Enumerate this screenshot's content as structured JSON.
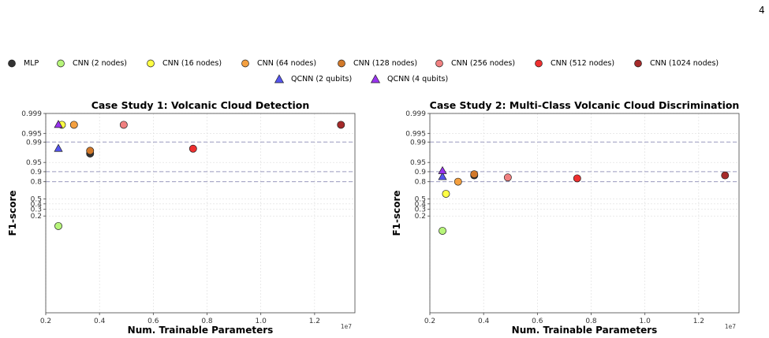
{
  "page_number": "4",
  "legend": [
    {
      "label": "MLP",
      "color": "#333333",
      "marker": "circle"
    },
    {
      "label": "CNN (2 nodes)",
      "color": "#b7f57a",
      "marker": "circle"
    },
    {
      "label": "CNN (16 nodes)",
      "color": "#ffff44",
      "marker": "circle"
    },
    {
      "label": "CNN (64 nodes)",
      "color": "#f4a040",
      "marker": "circle"
    },
    {
      "label": "CNN (128 nodes)",
      "color": "#d2792a",
      "marker": "circle"
    },
    {
      "label": "CNN (256 nodes)",
      "color": "#f08080",
      "marker": "circle"
    },
    {
      "label": "CNN (512 nodes)",
      "color": "#ee3030",
      "marker": "circle"
    },
    {
      "label": "CNN (1024 nodes)",
      "color": "#a52a2a",
      "marker": "circle"
    },
    {
      "label": "QCNN (2 qubits)",
      "color": "#5555ee",
      "marker": "triangle"
    },
    {
      "label": "QCNN (4 qubits)",
      "color": "#9933ee",
      "marker": "triangle"
    }
  ],
  "chart_data": [
    {
      "type": "scatter",
      "title": "Case Study 1: Volcanic Cloud Detection",
      "xlabel": "Num. Trainable Parameters",
      "ylabel": "F1-score",
      "x_scale_label": "1e7",
      "xlim": [
        0.2,
        1.35
      ],
      "x_ticks": [
        0.2,
        0.4,
        0.6,
        0.8,
        1.0,
        1.2
      ],
      "x_tick_labels": [
        "0.2",
        "0.4",
        "0.6",
        "0.8",
        "1.0",
        "1.2"
      ],
      "y_scale": "logit",
      "y_ticks": [
        0.2,
        0.3,
        0.4,
        0.5,
        0.8,
        0.9,
        0.95,
        0.99,
        0.995,
        0.999
      ],
      "y_tick_labels": [
        "0.2",
        "0.3",
        "0.4",
        "0.5",
        "0.8",
        "0.9",
        "0.95",
        "0.99",
        "0.995",
        "0.999"
      ],
      "hlines": [
        0.8,
        0.9,
        0.99
      ],
      "grid": true,
      "points": [
        {
          "series": "MLP",
          "x": 0.365,
          "y": 0.975
        },
        {
          "series": "CNN (2 nodes)",
          "x": 0.247,
          "y": 0.1
        },
        {
          "series": "CNN (16 nodes)",
          "x": 0.26,
          "y": 0.9975
        },
        {
          "series": "CNN (64 nodes)",
          "x": 0.305,
          "y": 0.9975
        },
        {
          "series": "CNN (128 nodes)",
          "x": 0.365,
          "y": 0.98
        },
        {
          "series": "CNN (256 nodes)",
          "x": 0.49,
          "y": 0.9975
        },
        {
          "series": "CNN (512 nodes)",
          "x": 0.748,
          "y": 0.983
        },
        {
          "series": "CNN (1024 nodes)",
          "x": 1.298,
          "y": 0.9975
        },
        {
          "series": "QCNN (2 qubits)",
          "x": 0.247,
          "y": 0.983
        },
        {
          "series": "QCNN (4 qubits)",
          "x": 0.247,
          "y": 0.9975
        }
      ]
    },
    {
      "type": "scatter",
      "title": "Case Study 2: Multi-Class Volcanic Cloud Discrimination",
      "xlabel": "Num. Trainable Parameters",
      "ylabel": "F1-score",
      "x_scale_label": "1e7",
      "xlim": [
        0.2,
        1.35
      ],
      "x_ticks": [
        0.2,
        0.4,
        0.6,
        0.8,
        1.0,
        1.2
      ],
      "x_tick_labels": [
        "0.2",
        "0.4",
        "0.6",
        "0.8",
        "1.0",
        "1.2"
      ],
      "y_scale": "logit",
      "y_ticks": [
        0.2,
        0.3,
        0.4,
        0.5,
        0.8,
        0.9,
        0.95,
        0.99,
        0.995,
        0.999
      ],
      "y_tick_labels": [
        "0.2",
        "0.3",
        "0.4",
        "0.5",
        "0.8",
        "0.9",
        "0.95",
        "0.99",
        "0.995",
        "0.999"
      ],
      "hlines": [
        0.8,
        0.9,
        0.99
      ],
      "grid": true,
      "points": [
        {
          "series": "MLP",
          "x": 0.365,
          "y": 0.87
        },
        {
          "series": "CNN (2 nodes)",
          "x": 0.247,
          "y": 0.07
        },
        {
          "series": "CNN (16 nodes)",
          "x": 0.26,
          "y": 0.6
        },
        {
          "series": "CNN (64 nodes)",
          "x": 0.305,
          "y": 0.8
        },
        {
          "series": "CNN (128 nodes)",
          "x": 0.365,
          "y": 0.88
        },
        {
          "series": "CNN (256 nodes)",
          "x": 0.49,
          "y": 0.85
        },
        {
          "series": "CNN (512 nodes)",
          "x": 0.748,
          "y": 0.84
        },
        {
          "series": "CNN (1024 nodes)",
          "x": 1.298,
          "y": 0.87
        },
        {
          "series": "QCNN (2 qubits)",
          "x": 0.247,
          "y": 0.855
        },
        {
          "series": "QCNN (4 qubits)",
          "x": 0.247,
          "y": 0.905
        }
      ]
    }
  ]
}
